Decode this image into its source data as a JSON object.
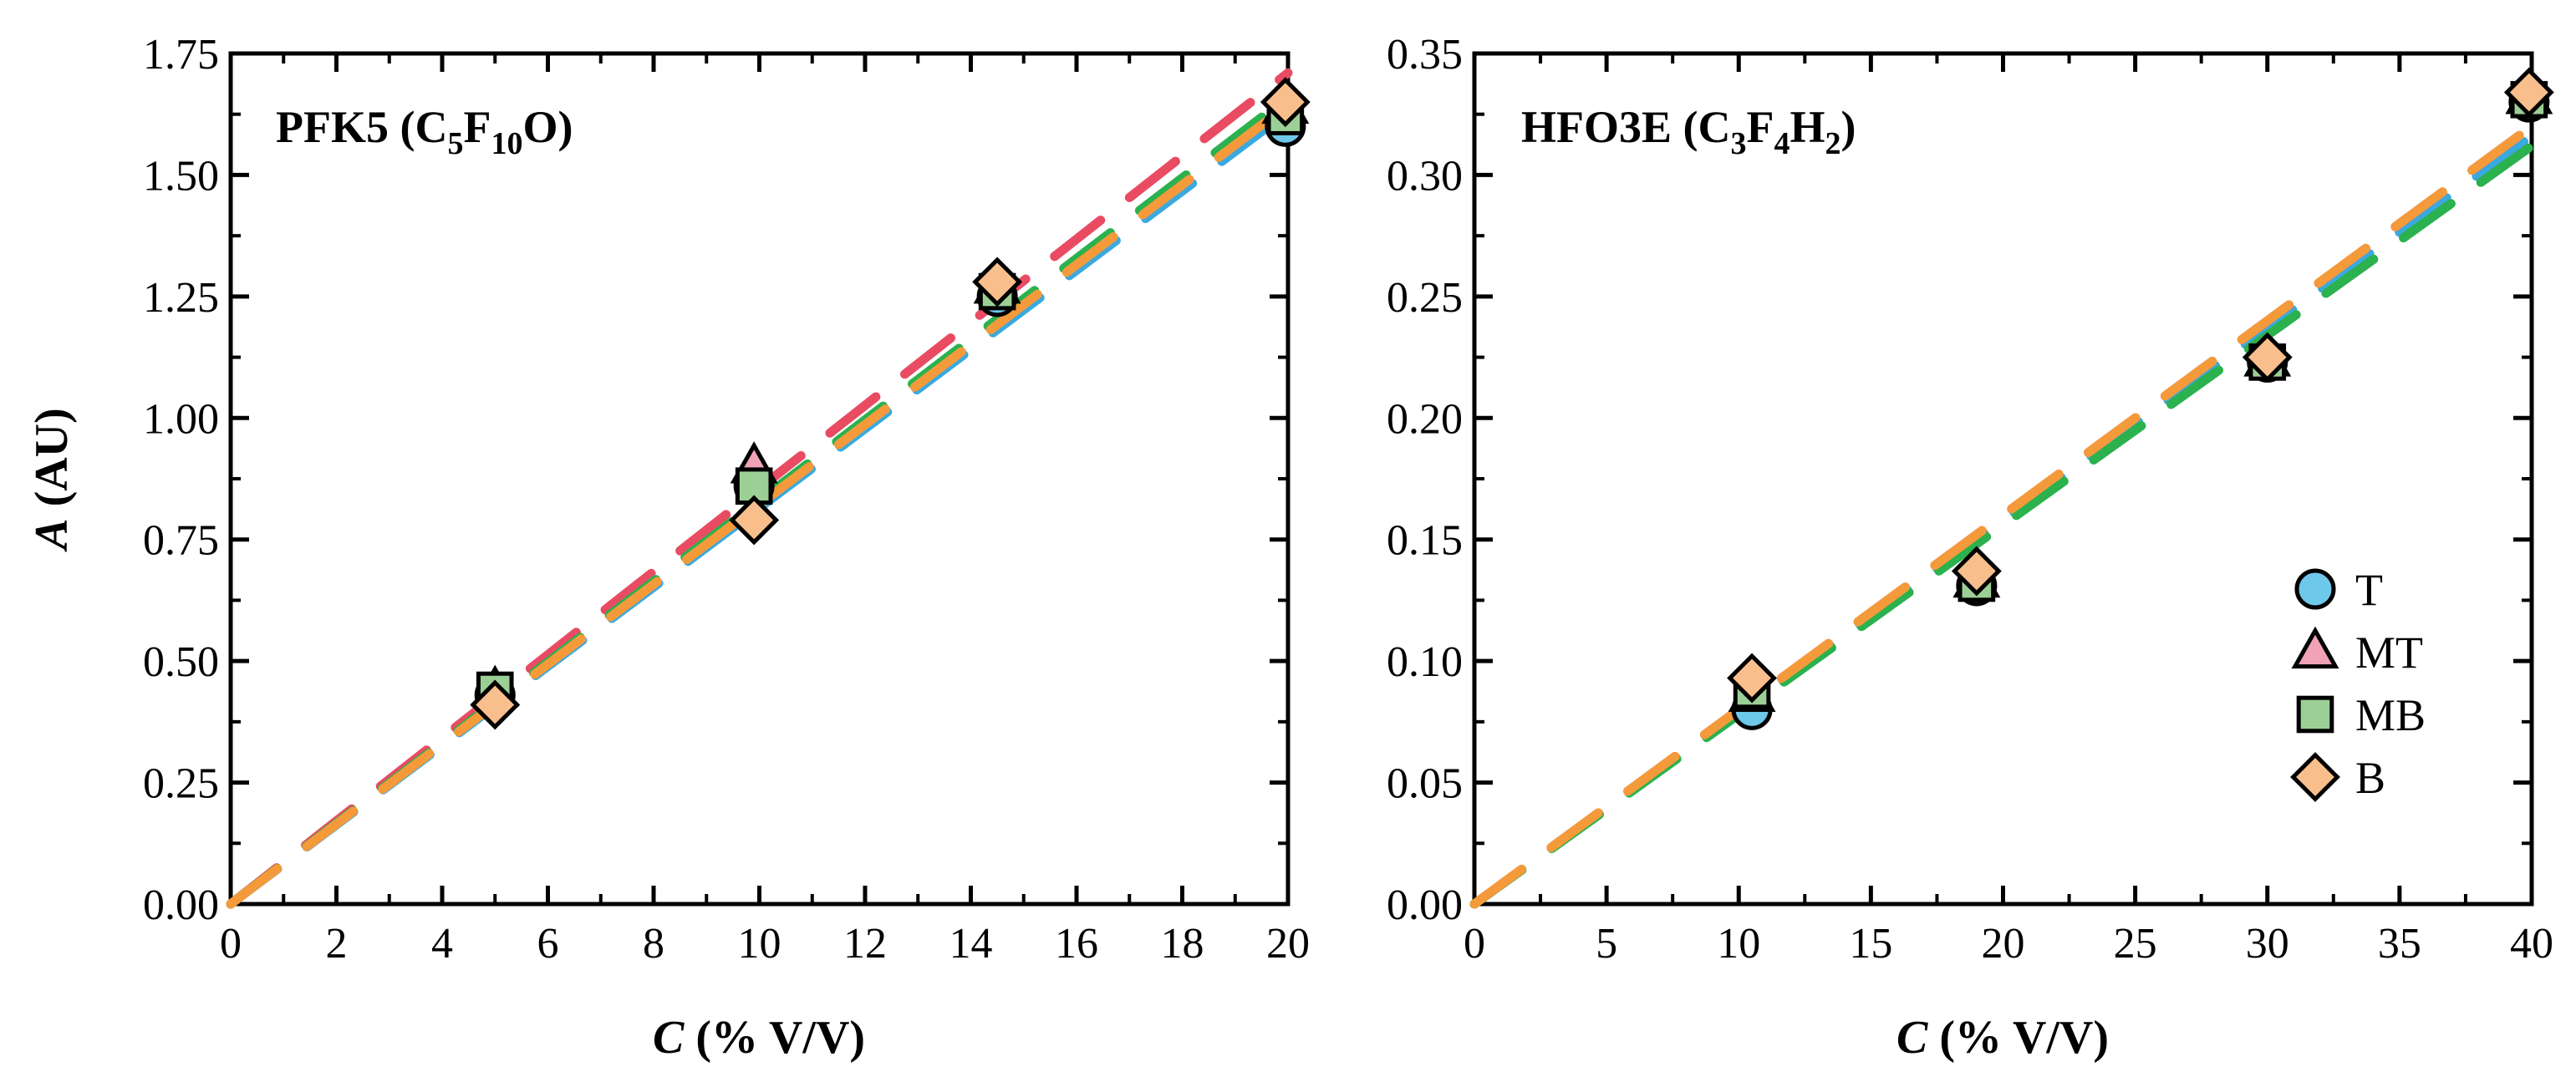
{
  "chart_data": [
    {
      "type": "scatter",
      "panel": "left",
      "title": "PFK5 (C5F10O)",
      "title_parts": {
        "prefix": "PFK5 (C",
        "s1": "5",
        "mid1": "F",
        "s2": "10",
        "mid2": "O)"
      },
      "xlabel": "C (% V/V)",
      "xlabel_parts": {
        "italic": "C",
        "rest": " (% V/V)"
      },
      "ylabel": "A (AU)",
      "ylabel_parts": {
        "italic": "A",
        "rest": " (AU)"
      },
      "xlim": [
        0,
        20
      ],
      "ylim": [
        0,
        1.75
      ],
      "xticks": [
        "0",
        "2",
        "4",
        "6",
        "8",
        "10",
        "12",
        "14",
        "16",
        "18",
        "20"
      ],
      "yticks": [
        "0.00",
        "0.25",
        "0.50",
        "0.75",
        "1.00",
        "1.25",
        "1.50",
        "1.75"
      ],
      "series": [
        {
          "name": "T",
          "x": [
            5.0,
            9.9,
            14.5,
            19.95
          ],
          "y": [
            0.43,
            0.86,
            1.25,
            1.6
          ],
          "fit_slope": 0.0815
        },
        {
          "name": "MT",
          "x": [
            5.0,
            9.9,
            14.5,
            19.95
          ],
          "y": [
            0.44,
            0.9,
            1.27,
            1.64
          ],
          "fit_slope": 0.0855
        },
        {
          "name": "MB",
          "x": [
            5.0,
            9.9,
            14.5,
            19.95
          ],
          "y": [
            0.44,
            0.86,
            1.26,
            1.62
          ],
          "fit_slope": 0.083
        },
        {
          "name": "B",
          "x": [
            5.0,
            9.9,
            14.5,
            19.95
          ],
          "y": [
            0.41,
            0.79,
            1.28,
            1.65
          ],
          "fit_slope": 0.0822
        }
      ]
    },
    {
      "type": "scatter",
      "panel": "right",
      "title": "HFO3E (C3F4H2)",
      "title_parts": {
        "prefix": "HFO3E (C",
        "s1": "3",
        "mid1": "F",
        "s2": "4",
        "mid2": "H",
        "s3": "2",
        "end": ")"
      },
      "xlabel": "C (% V/V)",
      "xlabel_parts": {
        "italic": "C",
        "rest": " (% V/V)"
      },
      "xlim": [
        0,
        40
      ],
      "ylim": [
        0,
        0.35
      ],
      "xticks": [
        "0",
        "5",
        "10",
        "15",
        "20",
        "25",
        "30",
        "35",
        "40"
      ],
      "yticks": [
        "0.00",
        "0.05",
        "0.10",
        "0.15",
        "0.20",
        "0.25",
        "0.30",
        "0.35"
      ],
      "series": [
        {
          "name": "T",
          "x": [
            10.5,
            19.0,
            30.0,
            39.9
          ],
          "y": [
            0.08,
            0.131,
            0.223,
            0.33
          ],
          "fit_slope": 0.0079
        },
        {
          "name": "MT",
          "x": [
            10.5,
            19.0,
            30.0,
            39.9
          ],
          "y": [
            0.086,
            0.133,
            0.224,
            0.332
          ],
          "fit_slope": 0.008
        },
        {
          "name": "MB",
          "x": [
            10.5,
            19.0,
            30.0,
            39.9
          ],
          "y": [
            0.088,
            0.132,
            0.223,
            0.331
          ],
          "fit_slope": 0.0078
        },
        {
          "name": "B",
          "x": [
            10.5,
            19.0,
            30.0,
            39.9
          ],
          "y": [
            0.093,
            0.137,
            0.225,
            0.334
          ],
          "fit_slope": 0.008
        }
      ]
    }
  ],
  "legend": {
    "placement": "bottom-right of right panel",
    "items": [
      {
        "label": "T",
        "marker": "circle",
        "fill": "#6ec8ea",
        "line": "#3aa9e0"
      },
      {
        "label": "MT",
        "marker": "triangle",
        "fill": "#f1a3b6",
        "line": "#e94b63"
      },
      {
        "label": "MB",
        "marker": "square",
        "fill": "#9ccf96",
        "line": "#2bb14e"
      },
      {
        "label": "B",
        "marker": "diamond",
        "fill": "#f8bf8c",
        "line": "#f59a3a"
      }
    ]
  }
}
